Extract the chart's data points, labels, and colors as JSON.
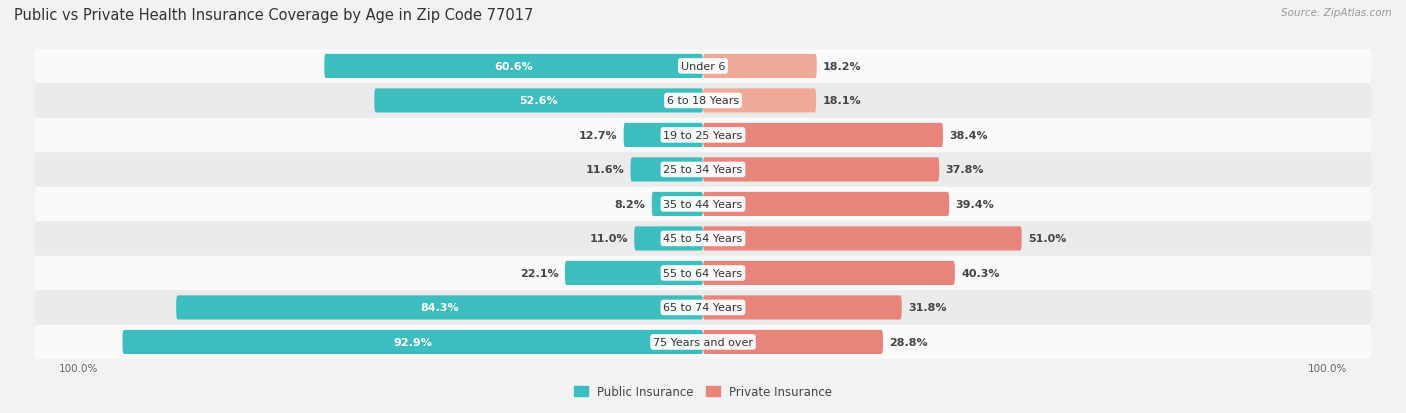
{
  "title": "Public vs Private Health Insurance Coverage by Age in Zip Code 77017",
  "source": "Source: ZipAtlas.com",
  "categories": [
    "Under 6",
    "6 to 18 Years",
    "19 to 25 Years",
    "25 to 34 Years",
    "35 to 44 Years",
    "45 to 54 Years",
    "55 to 64 Years",
    "65 to 74 Years",
    "75 Years and over"
  ],
  "public_values": [
    60.6,
    52.6,
    12.7,
    11.6,
    8.2,
    11.0,
    22.1,
    84.3,
    92.9
  ],
  "private_values": [
    18.2,
    18.1,
    38.4,
    37.8,
    39.4,
    51.0,
    40.3,
    31.8,
    28.8
  ],
  "public_color": "#3DBDBD",
  "private_color": "#E8857A",
  "private_color_light": "#F0A898",
  "bg_color": "#F2F2F2",
  "row_bg_odd": "#FAFAFA",
  "row_bg_even": "#EBEBEB",
  "max_value": 100.0,
  "title_fontsize": 10.5,
  "label_fontsize": 8.0,
  "legend_fontsize": 8.5,
  "source_fontsize": 7.5
}
